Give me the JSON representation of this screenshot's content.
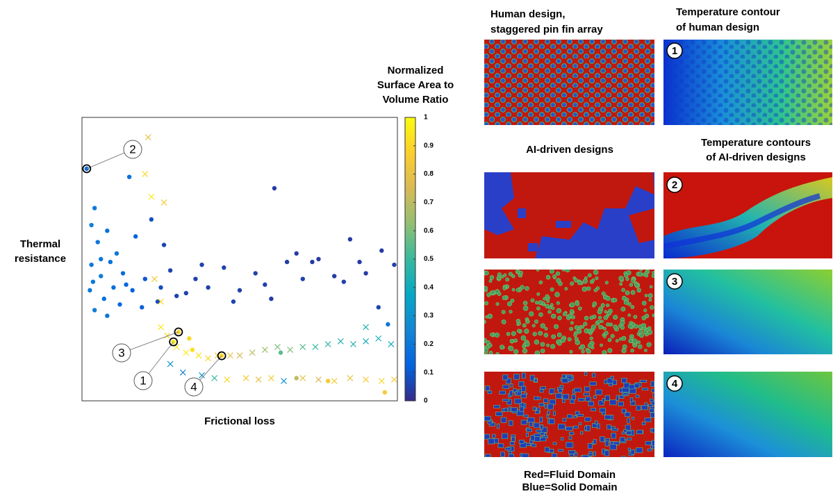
{
  "chart_data": {
    "type": "scatter",
    "x_label": "Frictional loss",
    "y_label": [
      "Thermal",
      "resistance"
    ],
    "colorbar_title": [
      "Normalized",
      "Surface Area to",
      "Volume Ratio"
    ],
    "xlim": [
      0,
      10
    ],
    "ylim": [
      0,
      10
    ],
    "clim": [
      0,
      1
    ],
    "cticks": [
      0,
      0.1,
      0.2,
      0.3,
      0.4,
      0.5,
      0.6,
      0.7,
      0.8,
      0.9,
      1
    ],
    "colormap": [
      "#352a87",
      "#0363e1",
      "#1485d4",
      "#06a7c6",
      "#38b99e",
      "#92bf73",
      "#d9ba56",
      "#fcce2e",
      "#f9fb0e"
    ],
    "series": [
      {
        "marker": "o",
        "x": [
          0.15,
          1.5,
          0.4,
          0.3,
          0.5,
          0.8,
          1.1,
          1.7,
          2.2,
          0.3,
          0.6,
          0.9,
          1.3,
          0.25,
          0.7,
          1.0,
          1.6,
          2.0,
          2.5,
          0.4,
          0.8,
          1.2,
          1.9,
          2.4,
          3.0,
          0.35,
          0.6,
          1.4,
          2.8,
          3.3,
          3.6,
          4.0,
          4.5,
          5.0,
          5.5,
          6.0,
          6.5,
          6.1,
          7.0,
          7.5,
          8.0,
          8.5,
          9.0,
          9.5,
          9.9,
          6.8,
          7.3,
          8.3,
          8.8,
          9.4,
          4.8,
          5.8,
          3.8,
          2.6,
          2.9,
          3.06,
          4.43,
          3.5,
          6.3,
          7.8,
          9.7,
          9.6,
          3.4,
          6.8
        ],
        "values": [
          8.19,
          7.9,
          6.8,
          6.2,
          5.6,
          6.0,
          5.2,
          5.8,
          6.4,
          4.8,
          4.4,
          4.9,
          4.5,
          3.9,
          3.6,
          4.0,
          3.9,
          4.3,
          4.0,
          3.2,
          3.0,
          3.4,
          3.3,
          3.5,
          3.7,
          4.2,
          5.0,
          4.1,
          4.6,
          3.8,
          4.3,
          4.0,
          4.7,
          3.9,
          4.5,
          3.6,
          4.9,
          7.5,
          4.3,
          5.0,
          4.4,
          5.7,
          4.5,
          5.3,
          4.8,
          5.2,
          4.9,
          4.2,
          4.9,
          3.3,
          3.5,
          4.1,
          4.8,
          5.5,
          2.08,
          2.43,
          1.59,
          1.8,
          1.7,
          0.7,
          2.7,
          0.3,
          2.2,
          0.8
        ],
        "color_values": [
          0.15,
          0.18,
          0.2,
          0.22,
          0.2,
          0.18,
          0.2,
          0.12,
          0.08,
          0.2,
          0.22,
          0.18,
          0.15,
          0.2,
          0.18,
          0.16,
          0.12,
          0.1,
          0.08,
          0.22,
          0.2,
          0.15,
          0.12,
          0.08,
          0.06,
          0.2,
          0.2,
          0.14,
          0.06,
          0.05,
          0.05,
          0.05,
          0.05,
          0.05,
          0.05,
          0.04,
          0.04,
          0.04,
          0.05,
          0.04,
          0.04,
          0.04,
          0.04,
          0.04,
          0.05,
          0.04,
          0.04,
          0.05,
          0.04,
          0.06,
          0.06,
          0.05,
          0.05,
          0.06,
          0.95,
          0.9,
          0.9,
          0.92,
          0.55,
          0.85,
          0.2,
          0.85,
          0.9,
          0.7
        ]
      },
      {
        "marker": "x",
        "x": [
          2.5,
          2.7,
          3.0,
          3.3,
          3.7,
          4.0,
          4.3,
          4.7,
          5.0,
          5.4,
          5.8,
          6.2,
          6.6,
          7.0,
          7.4,
          7.8,
          8.2,
          8.6,
          9.0,
          9.4,
          9.8,
          9.0,
          2.1,
          2.6,
          2.3,
          2.5,
          2.8,
          3.2,
          3.8,
          4.2,
          4.6,
          5.2,
          5.6,
          6.0,
          6.4,
          7.0,
          7.5,
          8.0,
          8.5,
          9.0,
          9.5,
          9.9,
          2.0,
          2.2
        ],
        "values": [
          2.6,
          2.3,
          1.9,
          1.7,
          1.6,
          1.5,
          1.6,
          1.6,
          1.6,
          1.7,
          1.8,
          1.9,
          1.8,
          1.9,
          1.9,
          2.0,
          2.1,
          2.0,
          2.1,
          2.2,
          2.0,
          2.6,
          9.3,
          7.0,
          4.3,
          3.5,
          1.3,
          1.0,
          0.9,
          0.8,
          0.75,
          0.8,
          0.75,
          0.8,
          0.7,
          0.8,
          0.75,
          0.7,
          0.8,
          0.75,
          0.7,
          0.75,
          8.0,
          7.2
        ],
        "color_values": [
          0.95,
          0.9,
          0.95,
          0.95,
          0.93,
          0.9,
          0.85,
          0.8,
          0.75,
          0.7,
          0.65,
          0.6,
          0.6,
          0.55,
          0.5,
          0.48,
          0.45,
          0.45,
          0.42,
          0.42,
          0.4,
          0.45,
          0.8,
          0.85,
          0.85,
          0.9,
          0.3,
          0.25,
          0.3,
          0.5,
          0.9,
          0.85,
          0.8,
          0.85,
          0.3,
          0.8,
          0.75,
          0.85,
          0.8,
          0.85,
          0.9,
          0.85,
          0.9,
          0.95
        ]
      }
    ],
    "annotations": [
      "2",
      "3",
      "1",
      "4"
    ]
  },
  "figure": {
    "col1_title": [
      "Human design,",
      "staggered pin fin array"
    ],
    "col2_title": [
      "Temperature contour",
      "of human design"
    ],
    "ai_title": "AI-driven designs",
    "ai_contour_title": [
      "Temperature contours",
      "of AI-driven designs"
    ],
    "badges": [
      "1",
      "2",
      "3",
      "4"
    ],
    "legend": [
      "Red=Fluid Domain",
      "Blue=Solid Domain"
    ]
  }
}
